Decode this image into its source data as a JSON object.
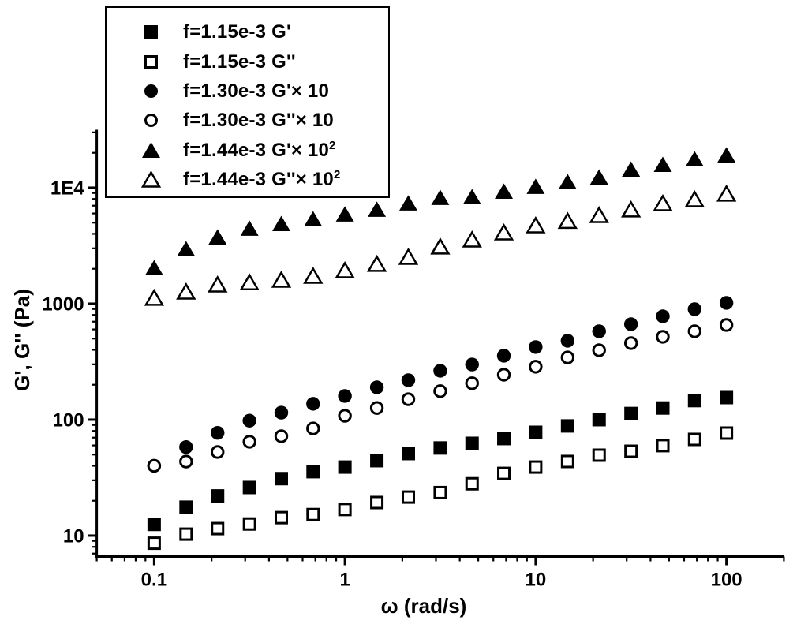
{
  "chart_data": {
    "type": "scatter",
    "title": "",
    "xlabel": "ω (rad/s)",
    "ylabel": "G', G'' (Pa)",
    "x_scale": "log",
    "y_scale": "log",
    "grid": "off",
    "legend_position": "top-left",
    "x_range": [
      0.05,
      200
    ],
    "y_range": [
      6.6,
      31600
    ],
    "x_ticks": {
      "major": [
        {
          "v": 0.1,
          "label": "0.1"
        },
        {
          "v": 1,
          "label": "1"
        },
        {
          "v": 10,
          "label": "10"
        },
        {
          "v": 100,
          "label": "100"
        }
      ]
    },
    "y_ticks": {
      "major": [
        {
          "v": 10,
          "label": "10"
        },
        {
          "v": 100,
          "label": "100"
        },
        {
          "v": 1000,
          "label": "1000"
        },
        {
          "v": 10000,
          "label": "1E4"
        }
      ]
    },
    "x": [
      0.1,
      0.147,
      0.215,
      0.316,
      0.464,
      0.681,
      1,
      1.47,
      2.15,
      3.16,
      4.64,
      6.81,
      10,
      14.7,
      21.5,
      31.6,
      46.4,
      68.1,
      100
    ],
    "series": [
      {
        "name": "f=1.15e-3 G'",
        "legend_label": "f=1.15e-3 G'",
        "legend_sup": "",
        "marker": "filled-square",
        "multiplier": 1,
        "values": [
          12.5,
          17.6,
          22,
          26,
          31,
          35.6,
          39,
          44.3,
          51,
          57,
          62.5,
          68.7,
          77.8,
          88.3,
          100,
          113,
          126,
          146,
          155
        ]
      },
      {
        "name": "f=1.15e-3 G''",
        "legend_label": "f=1.15e-3 G''",
        "legend_sup": "",
        "marker": "open-square",
        "multiplier": 1,
        "values": [
          8.6,
          10.3,
          11.5,
          12.6,
          14.3,
          15.2,
          16.8,
          19.3,
          21.5,
          23.5,
          28,
          34.4,
          39,
          43.6,
          49.4,
          53.4,
          59.7,
          67.6,
          76.6
        ]
      },
      {
        "name": "f=1.30e-3 G' × 10",
        "legend_label": "f=1.30e-3 G'× 10",
        "legend_sup": "",
        "marker": "filled-circle",
        "multiplier": 10,
        "values": [
          40,
          58,
          77,
          98,
          115,
          137,
          160,
          190,
          219,
          264,
          299,
          356,
          423,
          479,
          578,
          665,
          778,
          896,
          1016
        ]
      },
      {
        "name": "f=1.30e-3 G'' × 10",
        "legend_label": "f=1.30e-3 G''× 10",
        "legend_sup": "",
        "marker": "open-circle",
        "multiplier": 10,
        "values": [
          40,
          43.5,
          52.6,
          64.5,
          72,
          84,
          108,
          126,
          150,
          176,
          206,
          244,
          286,
          344,
          397,
          457,
          518,
          578,
          655
        ]
      },
      {
        "name": "f=1.44e-3 G' × 10^2",
        "legend_label": "f=1.44e-3 G'× 10",
        "legend_sup": "2",
        "marker": "filled-triangle",
        "multiplier": 100,
        "values": [
          2023,
          2944,
          3726,
          4430,
          4864,
          5345,
          5875,
          6460,
          7315,
          8170,
          8280,
          9245,
          10170,
          11165,
          12260,
          14335,
          15750,
          17580,
          19010
        ]
      },
      {
        "name": "f=1.44e-3 G'' × 10^2",
        "legend_label": "f=1.44e-3 G''× 10",
        "legend_sup": "2",
        "marker": "open-triangle",
        "multiplier": 100,
        "values": [
          1117,
          1265,
          1456,
          1520,
          1600,
          1730,
          1930,
          2190,
          2520,
          3090,
          3555,
          4090,
          4710,
          5150,
          5780,
          6455,
          7310,
          7905,
          8830
        ]
      }
    ]
  }
}
